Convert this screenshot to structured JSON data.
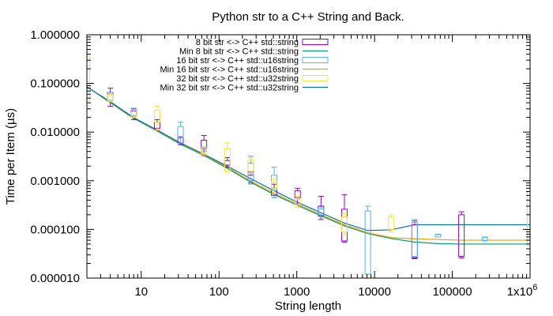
{
  "chart_data": {
    "type": "line",
    "title": "Python str to a C++ String and Back.",
    "xlabel": "String length",
    "ylabel": "Time per Item (µs)",
    "xscale": "log",
    "yscale": "log",
    "xlim": [
      2,
      1000000
    ],
    "ylim": [
      1e-05,
      1
    ],
    "xticks": [
      {
        "value": 10,
        "label": "10"
      },
      {
        "value": 100,
        "label": "100"
      },
      {
        "value": 1000,
        "label": "1000"
      },
      {
        "value": 10000,
        "label": "10000"
      },
      {
        "value": 100000,
        "label": "100000"
      }
    ],
    "xtick_last": {
      "value": 1000000,
      "base": "1x10",
      "exp": "6"
    },
    "yticks": [
      {
        "value": 1e-05,
        "label": "0.000010"
      },
      {
        "value": 0.0001,
        "label": "0.000100"
      },
      {
        "value": 0.001,
        "label": "0.001000"
      },
      {
        "value": 0.01,
        "label": "0.010000"
      },
      {
        "value": 0.1,
        "label": "0.100000"
      },
      {
        "value": 1,
        "label": "1.000000"
      }
    ],
    "legend_position": "top-right",
    "legend": [
      {
        "label": "8 bit str <-> C++ std::string",
        "color": "#9400d3",
        "kind": "box"
      },
      {
        "label": "Min 8 bit str <-> C++ std::string",
        "color": "#009e73",
        "kind": "line"
      },
      {
        "label": "16 bit str <-> C++ std::u16string",
        "color": "#56b4e9",
        "kind": "box"
      },
      {
        "label": "Min 16 bit str <-> C++ std::u16string",
        "color": "#e69f00",
        "kind": "line"
      },
      {
        "label": "32 bit str <-> C++ std::u32string",
        "color": "#f0e442",
        "kind": "box"
      },
      {
        "label": "Min 32 bit str <-> C++ std::u32string",
        "color": "#0072b2",
        "kind": "line"
      }
    ],
    "box_series": [
      {
        "name": "8 bit str <-> C++ std::string",
        "color": "#9400d3",
        "boxes": [
          {
            "x": 4,
            "low": 0.034,
            "q1": 0.045,
            "q3": 0.065,
            "high": 0.08
          },
          {
            "x": 8,
            "low": 0.018,
            "q1": 0.021,
            "q3": 0.027,
            "high": 0.03
          },
          {
            "x": 16,
            "low": 0.011,
            "q1": 0.012,
            "q3": 0.016,
            "high": 0.018
          },
          {
            "x": 32,
            "low": 0.0055,
            "q1": 0.006,
            "q3": 0.0075,
            "high": 0.008
          },
          {
            "x": 64,
            "low": 0.0033,
            "q1": 0.0045,
            "q3": 0.0068,
            "high": 0.0085
          },
          {
            "x": 128,
            "low": 0.0019,
            "q1": 0.0021,
            "q3": 0.0026,
            "high": 0.003
          },
          {
            "x": 256,
            "low": 0.0009,
            "q1": 0.001,
            "q3": 0.0013,
            "high": 0.0015
          },
          {
            "x": 512,
            "low": 0.00045,
            "q1": 0.0005,
            "q3": 0.0007,
            "high": 0.00085
          },
          {
            "x": 1024,
            "low": 0.00032,
            "q1": 0.00045,
            "q3": 0.00062,
            "high": 0.0007
          },
          {
            "x": 2048,
            "low": 0.00016,
            "q1": 0.00019,
            "q3": 0.0003,
            "high": 0.00048
          },
          {
            "x": 4096,
            "low": 5.5e-05,
            "q1": 5.8e-05,
            "q3": 0.00026,
            "high": 0.00052
          },
          {
            "x": 32768,
            "low": 2.5e-05,
            "q1": 2.6e-05,
            "q3": 0.000125,
            "high": 0.00015
          },
          {
            "x": 131072,
            "low": 2.6e-05,
            "q1": 2.8e-05,
            "q3": 0.0002,
            "high": 0.00023
          }
        ]
      },
      {
        "name": "16 bit str <-> C++ std::u16string",
        "color": "#56b4e9",
        "boxes": [
          {
            "x": 4,
            "low": 0.042,
            "q1": 0.045,
            "q3": 0.06,
            "high": 0.065
          },
          {
            "x": 8,
            "low": 0.021,
            "q1": 0.022,
            "q3": 0.028,
            "high": 0.031
          },
          {
            "x": 32,
            "low": 0.006,
            "q1": 0.0075,
            "q3": 0.013,
            "high": 0.016
          },
          {
            "x": 64,
            "low": 0.0036,
            "q1": 0.004,
            "q3": 0.0048,
            "high": 0.005
          },
          {
            "x": 256,
            "low": 0.00085,
            "q1": 0.001,
            "q3": 0.0023,
            "high": 0.0032
          },
          {
            "x": 512,
            "low": 0.00045,
            "q1": 0.00065,
            "q3": 0.0013,
            "high": 0.0019
          },
          {
            "x": 2048,
            "low": 0.00018,
            "q1": 0.0002,
            "q3": 0.00026,
            "high": 0.00029
          },
          {
            "x": 8192,
            "low": 1.2e-05,
            "q1": 1.2e-05,
            "q3": 0.00024,
            "high": 0.0003
          },
          {
            "x": 32768,
            "low": 2.7e-05,
            "q1": 2.8e-05,
            "q3": 0.00014,
            "high": 0.00016
          },
          {
            "x": 65536,
            "low": 7e-05,
            "q1": 7e-05,
            "q3": 7.8e-05,
            "high": 8e-05
          },
          {
            "x": 262144,
            "low": 5.8e-05,
            "q1": 6e-05,
            "q3": 6.8e-05,
            "high": 7e-05
          }
        ]
      },
      {
        "name": "32 bit str <-> C++ std::u32string",
        "color": "#f0e442",
        "boxes": [
          {
            "x": 2,
            "low": 0.035,
            "q1": 0.045,
            "q3": 0.35,
            "high": 0.45
          },
          {
            "x": 4,
            "low": 0.042,
            "q1": 0.044,
            "q3": 0.058,
            "high": 0.06
          },
          {
            "x": 8,
            "low": 0.02,
            "q1": 0.021,
            "q3": 0.026,
            "high": 0.028
          },
          {
            "x": 16,
            "low": 0.011,
            "q1": 0.016,
            "q3": 0.028,
            "high": 0.034
          },
          {
            "x": 64,
            "low": 0.0034,
            "q1": 0.0036,
            "q3": 0.0046,
            "high": 0.005
          },
          {
            "x": 128,
            "low": 0.0015,
            "q1": 0.0016,
            "q3": 0.0045,
            "high": 0.006
          },
          {
            "x": 256,
            "low": 0.0014,
            "q1": 0.0016,
            "q3": 0.0027,
            "high": 0.003
          },
          {
            "x": 512,
            "low": 0.00055,
            "q1": 0.0007,
            "q3": 0.00095,
            "high": 0.0011
          },
          {
            "x": 1024,
            "low": 0.00028,
            "q1": 0.00032,
            "q3": 0.00042,
            "high": 0.00048
          },
          {
            "x": 4096,
            "low": 8e-05,
            "q1": 9e-05,
            "q3": 0.00018,
            "high": 0.00021
          },
          {
            "x": 16384,
            "low": 9e-05,
            "q1": 0.0001,
            "q3": 0.00018,
            "high": 0.0002
          },
          {
            "x": 1000000,
            "low": 4.5e-05,
            "q1": 5e-05,
            "q3": 0.0006,
            "high": 0.0007
          }
        ]
      }
    ],
    "line_series": [
      {
        "name": "Min 8 bit str <-> C++ std::string",
        "color": "#009e73",
        "x": [
          2,
          4,
          8,
          16,
          32,
          64,
          128,
          256,
          512,
          1024,
          2048,
          4096,
          8192,
          16384,
          32768,
          65536,
          131072,
          262144,
          524288,
          1000000
        ],
        "y": [
          0.085,
          0.04,
          0.019,
          0.0105,
          0.0056,
          0.0033,
          0.0018,
          0.00093,
          0.00052,
          0.00031,
          0.00019,
          0.000118,
          8.2e-05,
          6.5e-05,
          5.5e-05,
          5.1e-05,
          5e-05,
          5e-05,
          5e-05,
          5e-05
        ]
      },
      {
        "name": "Min 16 bit str <-> C++ std::u16string",
        "color": "#e69f00",
        "x": [
          2,
          4,
          8,
          16,
          32,
          64,
          128,
          256,
          512,
          1024,
          2048,
          4096,
          8192,
          16384,
          32768,
          65536,
          131072,
          262144,
          524288,
          1000000
        ],
        "y": [
          0.085,
          0.041,
          0.0195,
          0.0108,
          0.0058,
          0.0034,
          0.0019,
          0.00098,
          0.00055,
          0.00033,
          0.0002,
          0.000125,
          8.5e-05,
          6.8e-05,
          6.4e-05,
          6.2e-05,
          6e-05,
          6e-05,
          6e-05,
          6e-05
        ]
      },
      {
        "name": "Min 32 bit str <-> C++ std::u32string",
        "color": "#0072b2",
        "x": [
          2,
          4,
          8,
          16,
          32,
          64,
          128,
          256,
          512,
          1024,
          2048,
          4096,
          8192,
          16384,
          32768,
          65536,
          131072,
          262144,
          524288,
          1000000
        ],
        "y": [
          0.085,
          0.042,
          0.0198,
          0.011,
          0.006,
          0.0035,
          0.002,
          0.0011,
          0.00062,
          0.00036,
          0.00022,
          0.000135,
          9.5e-05,
          9.8e-05,
          0.000125,
          0.000125,
          0.000125,
          0.000125,
          0.000125,
          0.000125
        ]
      }
    ]
  }
}
